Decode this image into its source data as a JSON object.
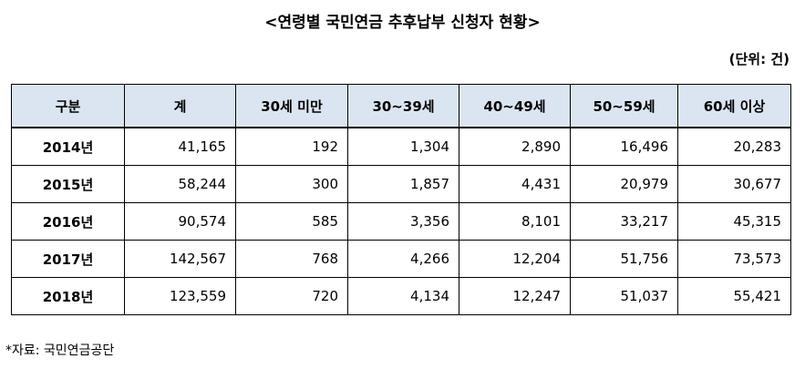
{
  "header": {
    "title": "<연령별 국민연금 추후납부 신청자 현황>",
    "unit": "(단위: 건)"
  },
  "table": {
    "columns": [
      "구분",
      "계",
      "30세 미만",
      "30~39세",
      "40~49세",
      "50~59세",
      "60세 이상"
    ],
    "rows": [
      [
        "2014년",
        "41,165",
        "192",
        "1,304",
        "2,890",
        "16,496",
        "20,283"
      ],
      [
        "2015년",
        "58,244",
        "300",
        "1,857",
        "4,431",
        "20,979",
        "30,677"
      ],
      [
        "2016년",
        "90,574",
        "585",
        "3,356",
        "8,101",
        "33,217",
        "45,315"
      ],
      [
        "2017년",
        "142,567",
        "768",
        "4,266",
        "12,204",
        "51,756",
        "73,573"
      ],
      [
        "2018년",
        "123,559",
        "720",
        "4,134",
        "12,247",
        "51,037",
        "55,421"
      ]
    ]
  },
  "footer": {
    "source": "*자료: 국민연금공단"
  }
}
